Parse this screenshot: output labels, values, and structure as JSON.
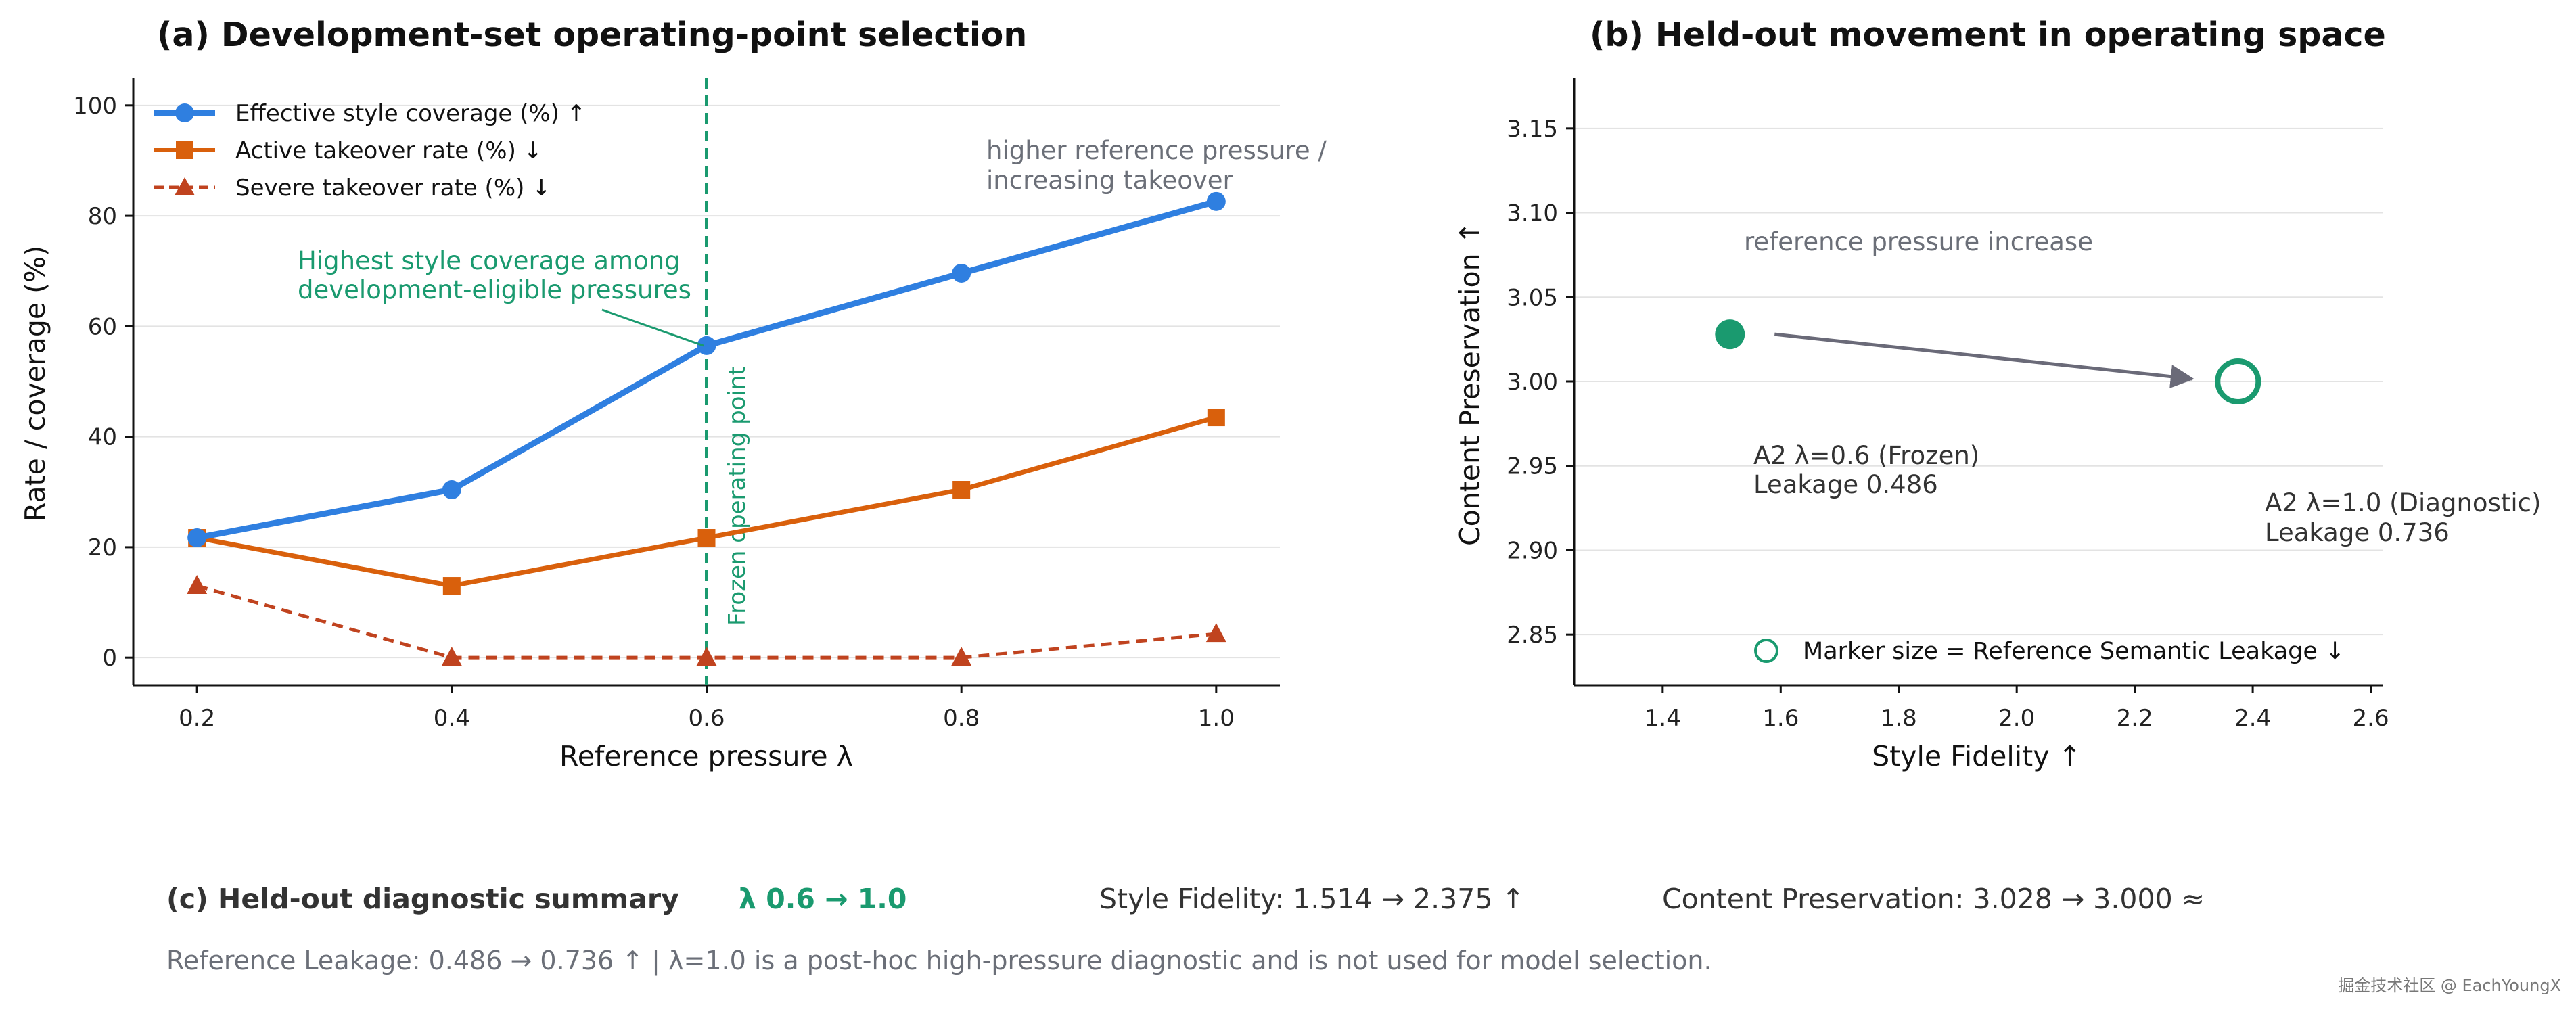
{
  "panel_a": {
    "title": "(a) Development-set operating-point selection",
    "xlabel": "Reference pressure λ",
    "ylabel": "Rate / coverage (%)",
    "annotation_highest": [
      "Highest style coverage among",
      "development-eligible pressures"
    ],
    "annotation_pressure": [
      "higher reference pressure /",
      "increasing takeover"
    ],
    "vline_label": "Frozen operating point",
    "legend": [
      "Effective style coverage (%) ↑",
      "Active takeover rate (%) ↓",
      "Severe takeover rate (%) ↓"
    ]
  },
  "panel_b": {
    "title": "(b) Held-out movement in operating space",
    "xlabel": "Style Fidelity ↑",
    "ylabel": "Content Preservation ↑",
    "arrow_label": "reference pressure increase",
    "point1_label": [
      "A2 λ=0.6 (Frozen)",
      "Leakage 0.486"
    ],
    "point2_label": [
      "A2 λ=1.0 (Diagnostic)",
      "Leakage 0.736"
    ],
    "legend": "Marker size = Reference Semantic Leakage ↓"
  },
  "panel_c": {
    "heading": "(c) Held-out diagnostic summary",
    "lambda_change": "λ 0.6 → 1.0",
    "style_fidelity": "Style Fidelity: 1.514 → 2.375  ↑",
    "content_preservation": "Content Preservation: 3.028 → 3.000  ≈",
    "footnote": "Reference Leakage: 0.486 → 0.736  ↑    |    λ=1.0 is a post-hoc high-pressure diagnostic and is not used for model selection."
  },
  "watermark": "掘金技术社区 @ EachYoungX",
  "colors": {
    "coverage": "#2f7fe0",
    "active": "#d9600c",
    "severe": "#c0431f",
    "frozen": "#1a9a6f",
    "arrow": "#6a6a78",
    "note_gray": "#6b6f78"
  },
  "chart_data": [
    {
      "type": "line",
      "title": "(a) Development-set operating-point selection",
      "xlabel": "Reference pressure λ",
      "ylabel": "Rate / coverage (%)",
      "x": [
        0.2,
        0.4,
        0.6,
        0.8,
        1.0
      ],
      "xlim": [
        0.15,
        1.05
      ],
      "ylim": [
        -5,
        105
      ],
      "xticks": [
        "0.2",
        "0.4",
        "0.6",
        "0.8",
        "1.0"
      ],
      "yticks": [
        0,
        20,
        40,
        60,
        80,
        100
      ],
      "grid": "horizontal",
      "legend_position": "top-left",
      "vline_x": 0.6,
      "series": [
        {
          "name": "Effective style coverage (%) ↑",
          "values": [
            21.7,
            30.4,
            56.5,
            69.6,
            82.6
          ],
          "marker": "circle",
          "dash": "solid"
        },
        {
          "name": "Active takeover rate (%) ↓",
          "values": [
            21.7,
            13.0,
            21.7,
            30.4,
            43.5
          ],
          "marker": "square",
          "dash": "solid"
        },
        {
          "name": "Severe takeover rate (%) ↓",
          "values": [
            13.0,
            0.0,
            0.0,
            0.0,
            4.3
          ],
          "marker": "triangle",
          "dash": "dashed"
        }
      ]
    },
    {
      "type": "scatter",
      "title": "(b) Held-out movement in operating space",
      "xlabel": "Style Fidelity ↑",
      "ylabel": "Content Preservation ↑",
      "xlim": [
        1.25,
        2.62
      ],
      "ylim": [
        2.82,
        3.18
      ],
      "xticks": [
        "1.4",
        "1.6",
        "1.8",
        "2.0",
        "2.2",
        "2.4",
        "2.6"
      ],
      "yticks": [
        "2.85",
        "2.90",
        "2.95",
        "3.00",
        "3.05",
        "3.10",
        "3.15"
      ],
      "grid": "horizontal",
      "points": [
        {
          "label": "A2 λ=0.6 (Frozen)",
          "x": 1.514,
          "y": 3.028,
          "leakage": 0.486,
          "filled": true
        },
        {
          "label": "A2 λ=1.0 (Diagnostic)",
          "x": 2.375,
          "y": 3.0,
          "leakage": 0.736,
          "filled": false
        }
      ]
    }
  ]
}
